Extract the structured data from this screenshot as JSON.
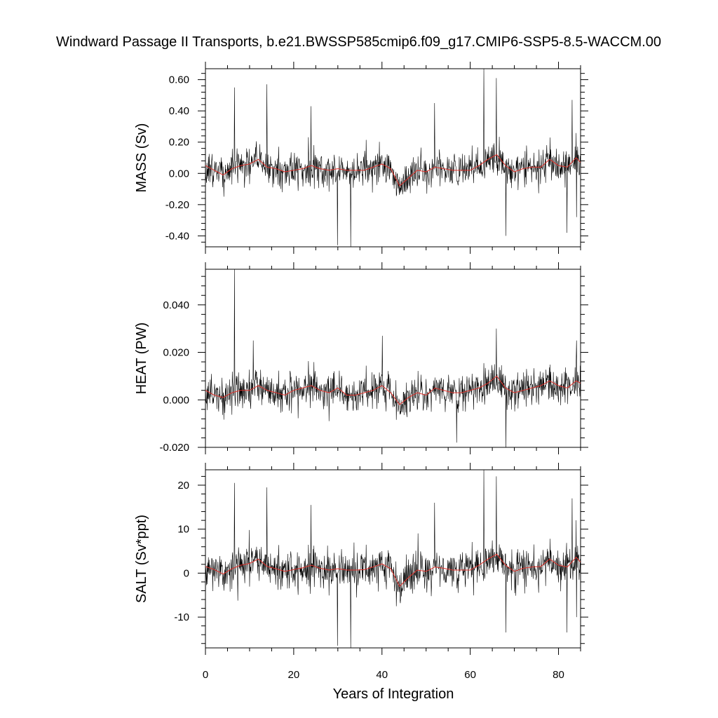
{
  "chart_data": {
    "type": "line",
    "title": "Windward Passage II Transports, b.e21.BWSSP585cmip6.f09_g17.CMIP6-SSP5-8.5-WACCM.00",
    "xlabel": "Years of Integration",
    "xlim": [
      0,
      85
    ],
    "xticks": [
      0,
      20,
      40,
      60,
      80
    ],
    "x_tick_labels": [
      "0",
      "20",
      "40",
      "60",
      "80"
    ],
    "sampling": "monthly, years 0-85",
    "colors": {
      "raw": "#000000",
      "smooth": "#e0302a"
    },
    "panels": [
      {
        "ylabel": "MASS (Sv)",
        "ylim": [
          -0.47,
          0.67
        ],
        "yticks": [
          -0.4,
          -0.2,
          0.0,
          0.2,
          0.4,
          0.6
        ],
        "y_tick_labels": [
          "-0.40",
          "-0.20",
          "0.00",
          "0.20",
          "0.40",
          "0.60"
        ],
        "mean": 0.03,
        "noise": 0.07,
        "smooth": [
          [
            0,
            0.05
          ],
          [
            2,
            0.02
          ],
          [
            4,
            -0.01
          ],
          [
            6,
            0.03
          ],
          [
            8,
            0.05
          ],
          [
            10,
            0.06
          ],
          [
            12,
            0.09
          ],
          [
            14,
            0.04
          ],
          [
            16,
            0.03
          ],
          [
            18,
            0.01
          ],
          [
            20,
            0.02
          ],
          [
            22,
            0.03
          ],
          [
            24,
            0.05
          ],
          [
            26,
            0.03
          ],
          [
            28,
            0.02
          ],
          [
            30,
            0.03
          ],
          [
            32,
            0.02
          ],
          [
            34,
            0.02
          ],
          [
            36,
            0.02
          ],
          [
            38,
            0.04
          ],
          [
            40,
            0.06
          ],
          [
            42,
            0.03
          ],
          [
            44,
            -0.08
          ],
          [
            46,
            -0.03
          ],
          [
            48,
            0.02
          ],
          [
            50,
            0.01
          ],
          [
            52,
            0.04
          ],
          [
            54,
            0.03
          ],
          [
            56,
            0.02
          ],
          [
            58,
            0.02
          ],
          [
            60,
            0.02
          ],
          [
            62,
            0.05
          ],
          [
            64,
            0.09
          ],
          [
            66,
            0.12
          ],
          [
            68,
            0.05
          ],
          [
            70,
            0.01
          ],
          [
            72,
            0.03
          ],
          [
            74,
            0.04
          ],
          [
            76,
            0.04
          ],
          [
            78,
            0.09
          ],
          [
            80,
            0.05
          ],
          [
            82,
            0.04
          ],
          [
            84,
            0.1
          ],
          [
            85,
            0.07
          ]
        ],
        "spikes": [
          [
            6.6,
            0.55
          ],
          [
            13.9,
            0.57
          ],
          [
            23.9,
            0.43
          ],
          [
            29.9,
            -0.46
          ],
          [
            32.9,
            -0.47
          ],
          [
            51.9,
            0.45
          ],
          [
            63.1,
            0.67
          ],
          [
            65.9,
            0.61
          ],
          [
            68.1,
            -0.4
          ],
          [
            81.9,
            -0.38
          ],
          [
            83.1,
            0.47
          ],
          [
            84.1,
            -0.28
          ]
        ]
      },
      {
        "ylabel": "HEAT (PW)",
        "ylim": [
          -0.02,
          0.055
        ],
        "yticks": [
          -0.02,
          0.0,
          0.02,
          0.04
        ],
        "y_tick_labels": [
          "-0.020",
          "0.000",
          "0.020",
          "0.040"
        ],
        "mean": 0.004,
        "noise": 0.0045,
        "smooth": [
          [
            0,
            0.004
          ],
          [
            2,
            0.002
          ],
          [
            4,
            0.001
          ],
          [
            6,
            0.003
          ],
          [
            8,
            0.004
          ],
          [
            10,
            0.004
          ],
          [
            12,
            0.006
          ],
          [
            14,
            0.004
          ],
          [
            16,
            0.003
          ],
          [
            18,
            0.002
          ],
          [
            20,
            0.004
          ],
          [
            22,
            0.005
          ],
          [
            24,
            0.006
          ],
          [
            26,
            0.004
          ],
          [
            28,
            0.003
          ],
          [
            30,
            0.005
          ],
          [
            32,
            0.002
          ],
          [
            34,
            0.002
          ],
          [
            36,
            0.003
          ],
          [
            38,
            0.004
          ],
          [
            40,
            0.006
          ],
          [
            42,
            0.003
          ],
          [
            44,
            -0.002
          ],
          [
            46,
            0.001
          ],
          [
            48,
            0.003
          ],
          [
            50,
            0.002
          ],
          [
            52,
            0.005
          ],
          [
            54,
            0.004
          ],
          [
            56,
            0.003
          ],
          [
            58,
            0.003
          ],
          [
            60,
            0.004
          ],
          [
            62,
            0.005
          ],
          [
            64,
            0.007
          ],
          [
            66,
            0.01
          ],
          [
            68,
            0.005
          ],
          [
            70,
            0.003
          ],
          [
            72,
            0.004
          ],
          [
            74,
            0.005
          ],
          [
            76,
            0.006
          ],
          [
            78,
            0.008
          ],
          [
            80,
            0.006
          ],
          [
            82,
            0.005
          ],
          [
            84,
            0.008
          ],
          [
            85,
            0.007
          ]
        ],
        "spikes": [
          [
            6.6,
            0.055
          ],
          [
            10.8,
            0.025
          ],
          [
            40.1,
            0.027
          ],
          [
            56.9,
            -0.018
          ],
          [
            65.9,
            0.03
          ],
          [
            68.1,
            -0.021
          ],
          [
            84.1,
            0.025
          ]
        ]
      },
      {
        "ylabel": "SALT (Sv*ppt)",
        "ylim": [
          -17,
          23.5
        ],
        "yticks": [
          -10,
          0,
          10,
          20
        ],
        "y_tick_labels": [
          "-10",
          "0",
          "10",
          "20"
        ],
        "mean": 1.0,
        "noise": 2.6,
        "smooth": [
          [
            0,
            1.5
          ],
          [
            2,
            0.8
          ],
          [
            4,
            -0.2
          ],
          [
            6,
            1.0
          ],
          [
            8,
            1.8
          ],
          [
            10,
            2.2
          ],
          [
            12,
            3.2
          ],
          [
            14,
            1.5
          ],
          [
            16,
            1.0
          ],
          [
            18,
            0.4
          ],
          [
            20,
            0.8
          ],
          [
            22,
            1.2
          ],
          [
            24,
            1.8
          ],
          [
            26,
            1.1
          ],
          [
            28,
            0.7
          ],
          [
            30,
            1.0
          ],
          [
            32,
            0.7
          ],
          [
            34,
            0.7
          ],
          [
            36,
            0.8
          ],
          [
            38,
            1.4
          ],
          [
            40,
            2.1
          ],
          [
            42,
            1.0
          ],
          [
            44,
            -3.0
          ],
          [
            46,
            -1.0
          ],
          [
            48,
            0.7
          ],
          [
            50,
            0.4
          ],
          [
            52,
            1.4
          ],
          [
            54,
            1.1
          ],
          [
            56,
            0.7
          ],
          [
            58,
            0.7
          ],
          [
            60,
            0.7
          ],
          [
            62,
            1.8
          ],
          [
            64,
            3.2
          ],
          [
            66,
            4.3
          ],
          [
            68,
            1.8
          ],
          [
            70,
            0.4
          ],
          [
            72,
            1.1
          ],
          [
            74,
            1.4
          ],
          [
            76,
            1.5
          ],
          [
            78,
            3.2
          ],
          [
            80,
            1.8
          ],
          [
            82,
            1.4
          ],
          [
            84,
            3.6
          ],
          [
            85,
            2.5
          ]
        ],
        "spikes": [
          [
            6.6,
            20.5
          ],
          [
            13.9,
            19.5
          ],
          [
            23.9,
            15.5
          ],
          [
            29.9,
            -16.5
          ],
          [
            32.9,
            -17
          ],
          [
            51.9,
            16
          ],
          [
            63.1,
            23.5
          ],
          [
            65.9,
            22
          ],
          [
            68.1,
            -13.5
          ],
          [
            81.9,
            -13.5
          ],
          [
            83.1,
            17
          ],
          [
            84.1,
            -10
          ]
        ]
      }
    ]
  }
}
